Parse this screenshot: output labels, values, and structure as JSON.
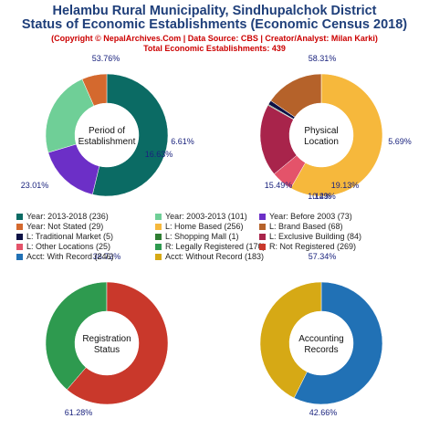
{
  "header": {
    "title_line1": "Helambu Rural Municipality, Sindhupalchok District",
    "title_line2": "Status of Economic Establishments (Economic Census 2018)",
    "copyright": "(Copyright © NepalArchives.Com | Data Source: CBS | Creator/Analyst: Milan Karki)",
    "total": "Total Economic Establishments: 439"
  },
  "chart_data": [
    {
      "type": "pie",
      "center_label": [
        "Period of",
        "Establishment"
      ],
      "slices": [
        {
          "label": "Year: 2013-2018",
          "value": 236,
          "pct": "53.76%",
          "color": "#0b6b64"
        },
        {
          "label": "Year: Before 2003",
          "value": 73,
          "pct": "16.63%",
          "color": "#6c2fc7"
        },
        {
          "label": "Year: 2003-2013",
          "value": 101,
          "pct": "23.01%",
          "color": "#6fcf97"
        },
        {
          "label": "Year: Not Stated",
          "value": 29,
          "pct": "6.61%",
          "color": "#d4692e"
        }
      ]
    },
    {
      "type": "pie",
      "center_label": [
        "Physical",
        "Location"
      ],
      "slices": [
        {
          "label": "L: Home Based",
          "value": 256,
          "pct": "58.31%",
          "color": "#f6b83c"
        },
        {
          "label": "L: Other Locations",
          "value": 25,
          "pct": "5.69%",
          "color": "#e4536a"
        },
        {
          "label": "L: Exclusive Building",
          "value": 84,
          "pct": "19.13%",
          "color": "#a8244b"
        },
        {
          "label": "L: Shopping Mall",
          "value": 1,
          "pct": "0.23%",
          "color": "#2e7d32"
        },
        {
          "label": "L: Traditional Market",
          "value": 5,
          "pct": "1.14%",
          "color": "#0d1145"
        },
        {
          "label": "L: Brand Based",
          "value": 68,
          "pct": "15.49%",
          "color": "#b5622a"
        }
      ]
    },
    {
      "type": "pie",
      "center_label": [
        "Registration",
        "Status"
      ],
      "slices": [
        {
          "label": "R: Legally Registered",
          "value": 170,
          "pct": "38.72%",
          "color": "#2e9a4f"
        },
        {
          "label": "R: Not Registered",
          "value": 269,
          "pct": "61.28%",
          "color": "#c9382b"
        }
      ]
    },
    {
      "type": "pie",
      "center_label": [
        "Accounting",
        "Records"
      ],
      "slices": [
        {
          "label": "Acct: With Record",
          "value": 246,
          "pct": "57.34%",
          "color": "#2171b5"
        },
        {
          "label": "Acct: Without Record",
          "value": 183,
          "pct": "42.66%",
          "color": "#d6a915"
        }
      ]
    }
  ],
  "legend": [
    {
      "text": "Year: 2013-2018 (236)",
      "color": "#0b6b64"
    },
    {
      "text": "Year: 2003-2013 (101)",
      "color": "#6fcf97"
    },
    {
      "text": "Year: Before 2003 (73)",
      "color": "#6c2fc7"
    },
    {
      "text": "Year: Not Stated (29)",
      "color": "#d4692e"
    },
    {
      "text": "L: Home Based (256)",
      "color": "#f6b83c"
    },
    {
      "text": "L: Brand Based (68)",
      "color": "#b5622a"
    },
    {
      "text": "L: Traditional Market (5)",
      "color": "#0d1145"
    },
    {
      "text": "L: Shopping Mall (1)",
      "color": "#2e7d32"
    },
    {
      "text": "L: Exclusive Building (84)",
      "color": "#a8244b"
    },
    {
      "text": "L: Other Locations (25)",
      "color": "#e4536a"
    },
    {
      "text": "R: Legally Registered (170)",
      "color": "#2e9a4f"
    },
    {
      "text": "R: Not Registered (269)",
      "color": "#c9382b"
    },
    {
      "text": "Acct: With Record (246)",
      "color": "#2171b5"
    },
    {
      "text": "Acct: Without Record (183)",
      "color": "#d6a915"
    }
  ]
}
